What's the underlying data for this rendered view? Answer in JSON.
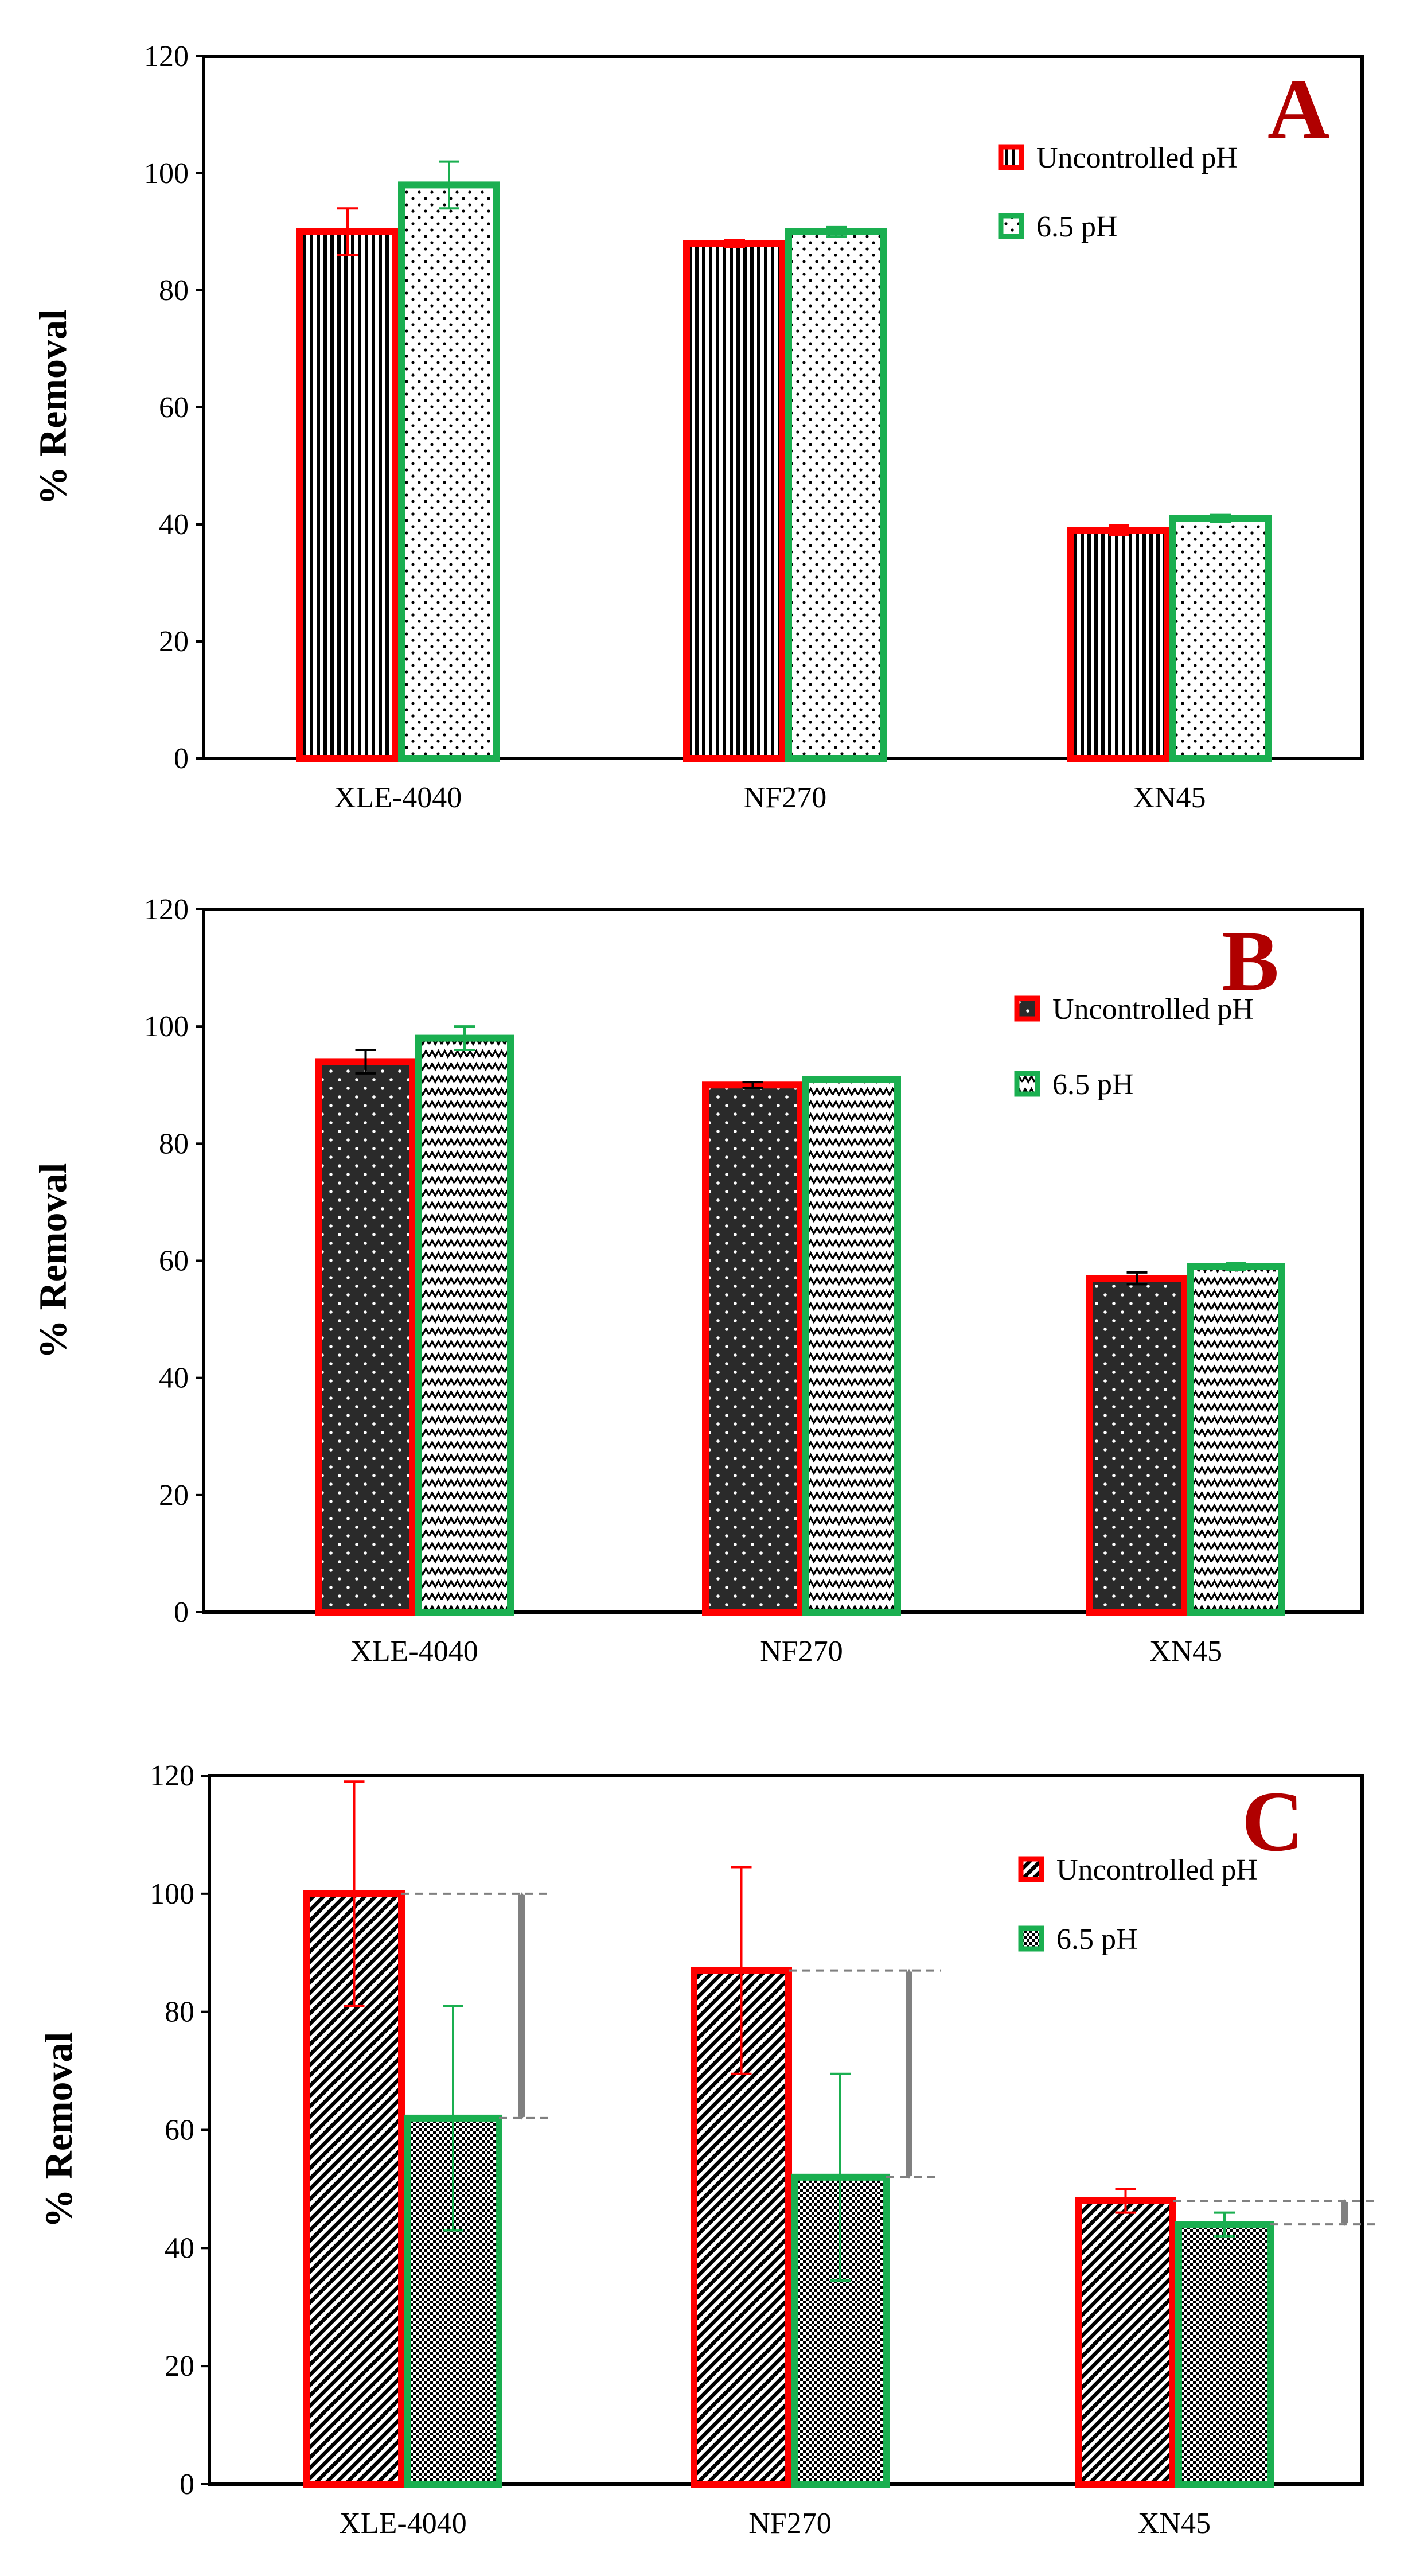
{
  "chart_data": [
    {
      "type": "bar",
      "panel_label": "A",
      "categories": [
        "XLE-4040",
        "NF270",
        "XN45"
      ],
      "series": [
        {
          "name": "Uncontrolled pH",
          "values": [
            90,
            88,
            39
          ],
          "errors": [
            4,
            0.6,
            0.8
          ],
          "color": "#ff0000",
          "pattern": "vstripes"
        },
        {
          "name": "6.5 pH",
          "values": [
            98,
            90,
            41
          ],
          "errors": [
            4,
            0.8,
            0.6
          ],
          "color": "#1aaf50",
          "pattern": "dots"
        }
      ],
      "ylabel": "% Removal",
      "ylim": [
        0,
        120
      ],
      "yticks": [
        0,
        20,
        40,
        60,
        80,
        100,
        120
      ],
      "legend_position": "top-right",
      "arrows": []
    },
    {
      "type": "bar",
      "panel_label": "B",
      "categories": [
        "XLE-4040",
        "NF270",
        "XN45"
      ],
      "series": [
        {
          "name": "Uncontrolled pH",
          "values": [
            94,
            90,
            57
          ],
          "errors": [
            2,
            0.5,
            1
          ],
          "color": "#ff0000",
          "pattern": "darkdots"
        },
        {
          "name": "6.5 pH",
          "values": [
            98,
            91,
            59
          ],
          "errors": [
            2,
            0.3,
            0.6
          ],
          "color": "#1aaf50",
          "pattern": "zigzag"
        }
      ],
      "ylabel": "% Removal",
      "ylim": [
        0,
        120
      ],
      "yticks": [
        0,
        20,
        40,
        60,
        80,
        100,
        120
      ],
      "legend_position": "top-right",
      "arrows": []
    },
    {
      "type": "bar",
      "panel_label": "C",
      "categories": [
        "XLE-4040",
        "NF270",
        "XN45"
      ],
      "series": [
        {
          "name": "Uncontrolled pH",
          "values": [
            100,
            87,
            48
          ],
          "errors": [
            19,
            17.5,
            2
          ],
          "color": "#ff0000",
          "pattern": "diag"
        },
        {
          "name": "6.5 pH",
          "values": [
            62,
            52,
            44
          ],
          "errors": [
            19,
            17.5,
            2
          ],
          "color": "#1aaf50",
          "pattern": "checker"
        }
      ],
      "ylabel": "% Removal",
      "ylim": [
        0,
        120
      ],
      "yticks": [
        0,
        20,
        40,
        60,
        80,
        100,
        120
      ],
      "legend_position": "top-right",
      "arrows": [
        {
          "category": "XLE-4040",
          "from": 100,
          "to": 62
        },
        {
          "category": "NF270",
          "from": 87,
          "to": 52
        },
        {
          "category": "XN45",
          "from": 48,
          "to": 44
        }
      ]
    }
  ]
}
